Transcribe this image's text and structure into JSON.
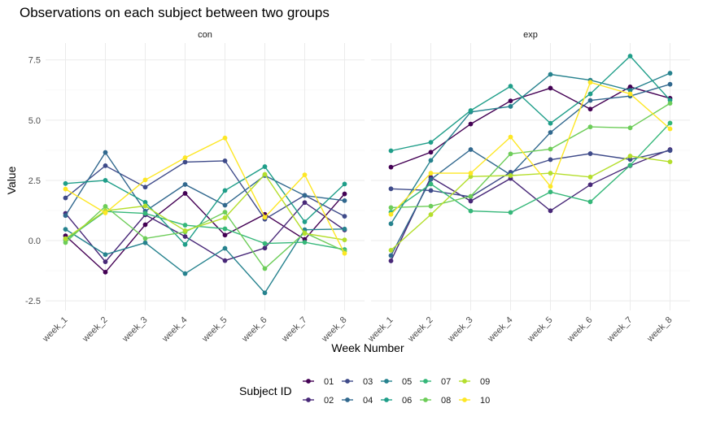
{
  "chart_data": {
    "type": "line",
    "title": "Observations on each subject between two groups",
    "xlabel": "Week Number",
    "ylabel": "Value",
    "ylim": [
      -2.9,
      8.2
    ],
    "yticks": [
      -2.5,
      0.0,
      2.5,
      5.0,
      7.5
    ],
    "ytick_labels": [
      "-2.5",
      "0.0",
      "2.5",
      "5.0",
      "7.5"
    ],
    "categories": [
      "week_1",
      "week_2",
      "week_3",
      "week_4",
      "week_5",
      "week_6",
      "week_7",
      "week_8"
    ],
    "legend_title": "Subject ID",
    "legend_position": "bottom",
    "grid": true,
    "panels": [
      {
        "label": "con",
        "series": [
          {
            "name": "01",
            "color": "#440154",
            "values": [
              0.2,
              -1.31,
              0.66,
              1.96,
              0.23,
              1.09,
              0.05,
              1.94
            ]
          },
          {
            "name": "02",
            "color": "#482878",
            "values": [
              1.13,
              -0.88,
              1.07,
              0.17,
              -0.83,
              -0.31,
              1.58,
              0.44
            ]
          },
          {
            "name": "03",
            "color": "#3E4A89",
            "values": [
              1.77,
              3.11,
              2.22,
              3.26,
              3.31,
              0.89,
              1.88,
              1.01
            ]
          },
          {
            "name": "04",
            "color": "#31688E",
            "values": [
              1.04,
              3.66,
              1.22,
              2.33,
              1.47,
              2.7,
              1.87,
              1.66
            ]
          },
          {
            "name": "05",
            "color": "#26828E",
            "values": [
              0.47,
              -0.58,
              -0.09,
              -1.37,
              -0.32,
              -2.17,
              0.45,
              0.48
            ]
          },
          {
            "name": "06",
            "color": "#1F9E89",
            "values": [
              2.37,
              2.5,
              1.59,
              -0.16,
              2.08,
              3.07,
              0.78,
              2.35
            ]
          },
          {
            "name": "07",
            "color": "#35B779",
            "values": [
              0.03,
              1.21,
              1.13,
              0.64,
              0.49,
              -0.12,
              -0.07,
              -0.37
            ]
          },
          {
            "name": "08",
            "color": "#6DCD59",
            "values": [
              -0.08,
              1.42,
              0.09,
              0.36,
              1.18,
              -1.16,
              0.33,
              -0.44
            ]
          },
          {
            "name": "09",
            "color": "#B4DE2C",
            "values": [
              0.08,
              1.24,
              1.44,
              0.41,
              0.95,
              2.75,
              0.3,
              0.03
            ]
          },
          {
            "name": "10",
            "color": "#FDE725",
            "values": [
              2.14,
              1.15,
              2.52,
              3.44,
              4.26,
              0.97,
              2.73,
              -0.53
            ]
          }
        ]
      },
      {
        "label": "exp",
        "series": [
          {
            "name": "01",
            "color": "#440154",
            "values": [
              3.05,
              3.67,
              4.84,
              5.8,
              6.33,
              5.46,
              6.38,
              5.91
            ]
          },
          {
            "name": "02",
            "color": "#482878",
            "values": [
              -0.84,
              2.63,
              1.64,
              2.58,
              1.24,
              2.32,
              3.11,
              3.78
            ]
          },
          {
            "name": "03",
            "color": "#3E4A89",
            "values": [
              2.15,
              2.08,
              1.82,
              2.84,
              3.36,
              3.61,
              3.37,
              3.74
            ]
          },
          {
            "name": "04",
            "color": "#31688E",
            "values": [
              -0.62,
              2.54,
              3.78,
              2.73,
              4.49,
              5.82,
              6.0,
              6.49
            ]
          },
          {
            "name": "05",
            "color": "#26828E",
            "values": [
              0.7,
              3.33,
              5.34,
              5.57,
              6.9,
              6.66,
              6.24,
              6.95
            ]
          },
          {
            "name": "06",
            "color": "#1F9E89",
            "values": [
              3.73,
              4.08,
              5.4,
              6.41,
              4.87,
              6.09,
              7.66,
              5.83
            ]
          },
          {
            "name": "07",
            "color": "#35B779",
            "values": [
              1.18,
              2.35,
              1.23,
              1.17,
              2.02,
              1.61,
              3.13,
              4.88
            ]
          },
          {
            "name": "08",
            "color": "#6DCD59",
            "values": [
              1.37,
              1.43,
              1.84,
              3.6,
              3.8,
              4.72,
              4.68,
              5.7
            ]
          },
          {
            "name": "09",
            "color": "#B4DE2C",
            "values": [
              -0.4,
              1.08,
              2.66,
              2.7,
              2.8,
              2.64,
              3.51,
              3.27
            ]
          },
          {
            "name": "10",
            "color": "#FDE725",
            "values": [
              1.09,
              2.8,
              2.8,
              4.3,
              2.25,
              6.57,
              6.09,
              4.64
            ]
          }
        ]
      }
    ]
  }
}
